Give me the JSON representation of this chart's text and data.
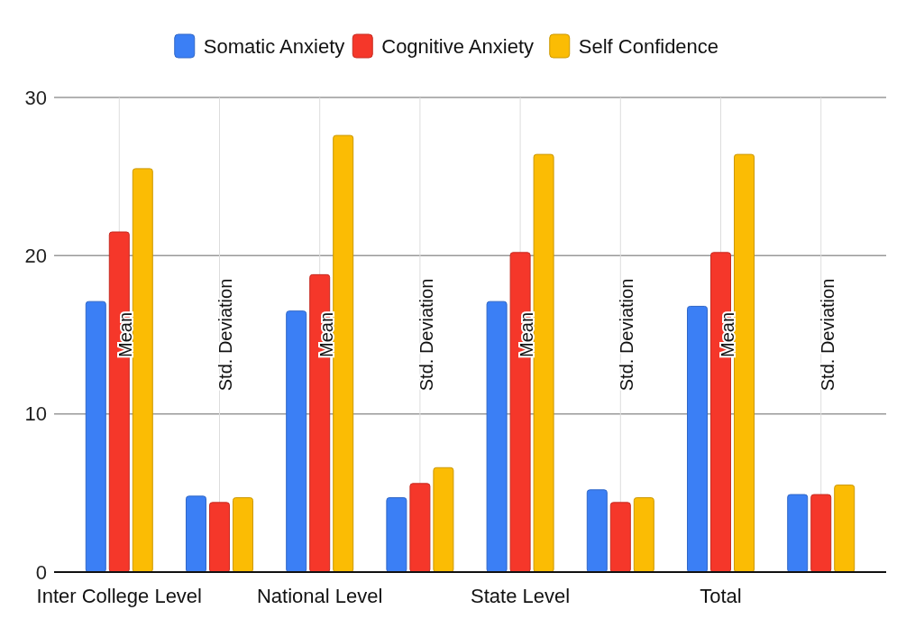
{
  "chart_data": {
    "type": "bar",
    "categories": [
      "Mean",
      "Std. Deviation",
      "Mean",
      "Std. Deviation",
      "Mean",
      "Std. Deviation",
      "Mean",
      "Std. Deviation"
    ],
    "series": [
      {
        "name": "Somatic Anxiety",
        "color": "#3b7ff5",
        "values": [
          17.1,
          4.8,
          16.5,
          4.7,
          17.1,
          5.2,
          16.8,
          4.9
        ]
      },
      {
        "name": "Cognitive Anxiety",
        "color": "#f5372a",
        "values": [
          21.5,
          4.4,
          18.8,
          5.6,
          20.2,
          4.4,
          20.2,
          4.9
        ]
      },
      {
        "name": "Self Confidence",
        "color": "#fbbc04",
        "values": [
          25.5,
          4.7,
          27.6,
          6.6,
          26.4,
          4.7,
          26.4,
          5.5
        ]
      }
    ],
    "annotations": [
      "Inter College Level",
      "National Level",
      "State Level",
      "Total"
    ],
    "ylim": [
      0,
      30
    ],
    "yticks": [
      0,
      10,
      20,
      30
    ],
    "grid": true,
    "legend": "top"
  }
}
